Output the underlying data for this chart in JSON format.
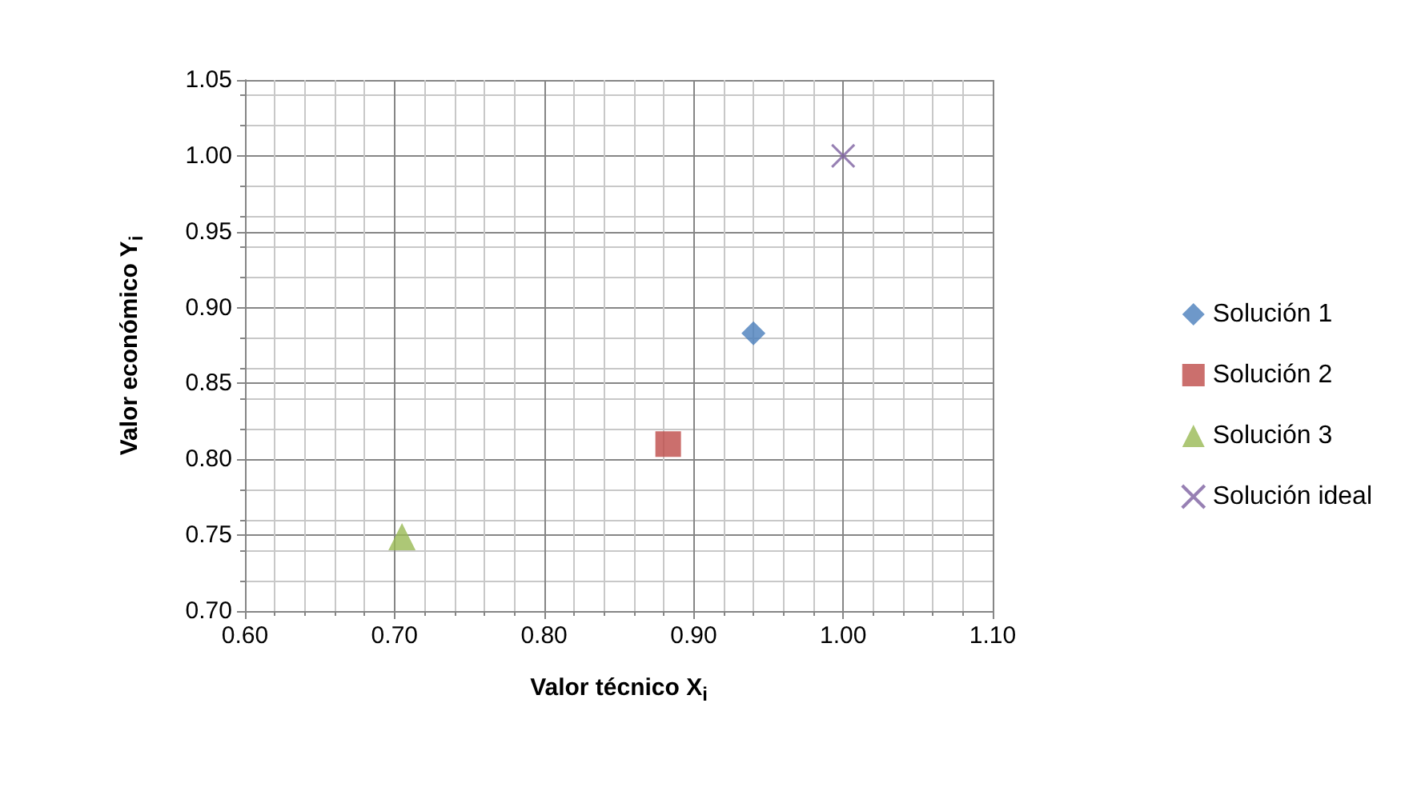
{
  "chart_data": {
    "type": "scatter",
    "xlabel": "Valor técnico X$_{i}$",
    "ylabel": "Valor económico Y$_{i}$",
    "xlim": [
      0.6,
      1.1
    ],
    "xticks": [
      {
        "value": 0.6,
        "label": "0.60"
      },
      {
        "value": 0.7,
        "label": "0.70"
      },
      {
        "value": 0.8,
        "label": "0.80"
      },
      {
        "value": 0.9,
        "label": "0.90"
      },
      {
        "value": 1.0,
        "label": "1.00"
      },
      {
        "value": 1.1,
        "label": "1.10"
      }
    ],
    "ylim": [
      0.7,
      1.05
    ],
    "yticks": [
      {
        "value": 0.7,
        "label": "0.70"
      },
      {
        "value": 0.75,
        "label": "0.75"
      },
      {
        "value": 0.8,
        "label": "0.80"
      },
      {
        "value": 0.85,
        "label": "0.85"
      },
      {
        "value": 0.9,
        "label": "0.90"
      },
      {
        "value": 0.95,
        "label": "0.95"
      },
      {
        "value": 1.0,
        "label": "1.00"
      },
      {
        "value": 1.05,
        "label": "1.05"
      }
    ],
    "grid": true,
    "legend": "right",
    "series": [
      {
        "name": "Solución 1",
        "color": "#4a7ebb",
        "marker": "diamond",
        "x": [
          0.94
        ],
        "values": [
          0.883
        ]
      },
      {
        "name": "Solución 2",
        "color": "#be4b48",
        "marker": "square",
        "x": [
          0.883
        ],
        "values": [
          0.81
        ]
      },
      {
        "name": "Solución 3",
        "color": "#98b954",
        "marker": "triangle",
        "x": [
          0.705
        ],
        "values": [
          0.749
        ]
      },
      {
        "name": "Solución ideal",
        "color": "#7d60a0",
        "marker": "cross",
        "x": [
          1.0
        ],
        "values": [
          1.0
        ]
      }
    ]
  }
}
